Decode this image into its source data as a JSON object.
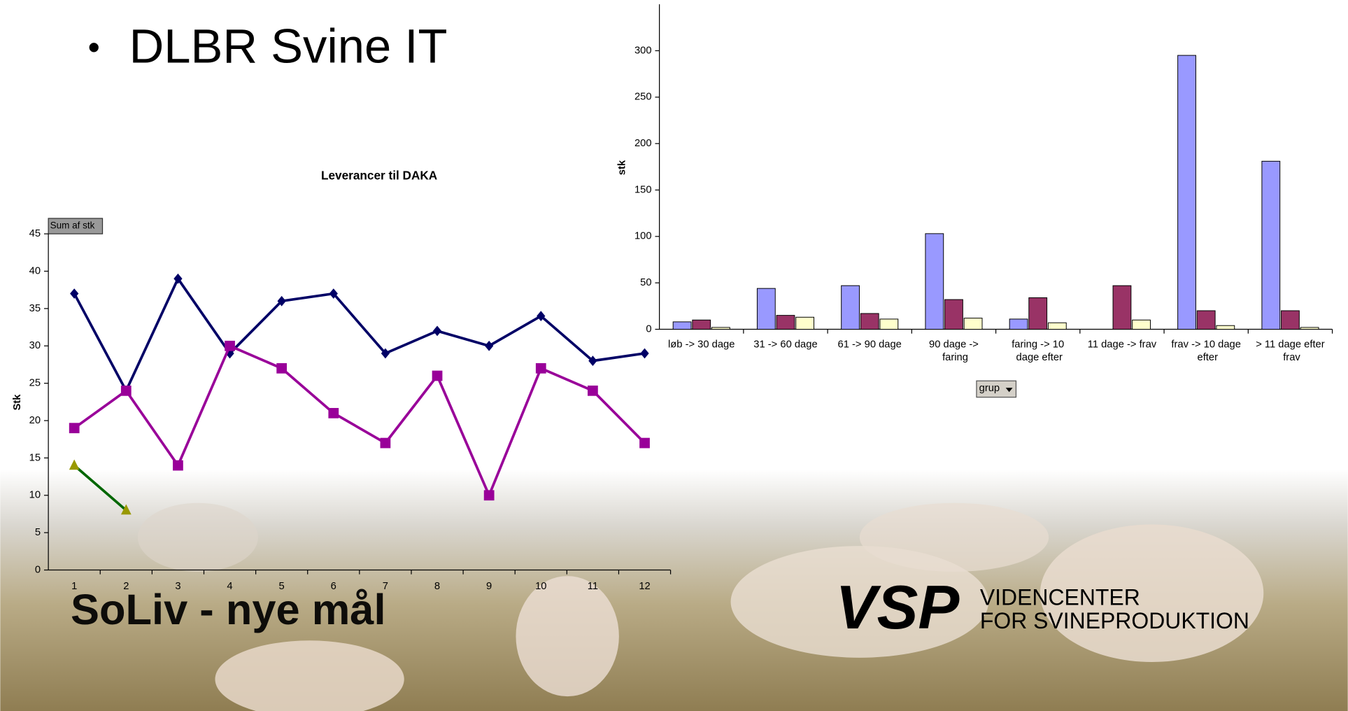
{
  "slide": {
    "bullet": "DLBR Svine IT",
    "photo_caption": "SoLiv - nye mål",
    "logo_text": "VSP",
    "logo_line1": "VIDENCENTER",
    "logo_line2": "FOR SVINEPRODUKTION"
  },
  "chart_data": [
    {
      "type": "bar",
      "y_label": "stk",
      "field_button": "grup",
      "categories": [
        "løb -> 30 dage",
        "31 -> 60 dage",
        "61 -> 90 dage",
        "90 dage -> faring",
        "faring -> 10 dage efter",
        "11 dage -> frav",
        "frav -> 10 dage efter",
        "> 11 dage efter frav"
      ],
      "series": [
        {
          "color": "#9999ff",
          "values": [
            8,
            44,
            47,
            103,
            11,
            0,
            295,
            181
          ]
        },
        {
          "color": "#993366",
          "values": [
            10,
            15,
            17,
            32,
            34,
            47,
            20,
            20
          ]
        },
        {
          "color": "#ffffcc",
          "values": [
            2,
            13,
            11,
            12,
            7,
            10,
            4,
            2
          ]
        }
      ],
      "ylim": [
        0,
        350
      ],
      "yticks": [
        0,
        50,
        100,
        150,
        200,
        250,
        300
      ]
    },
    {
      "type": "line",
      "title": "Leverancer til DAKA",
      "y_label": "Stk",
      "field_button": "Sum af stk",
      "categories": [
        "1",
        "2",
        "3",
        "4",
        "5",
        "6",
        "7",
        "8",
        "9",
        "10",
        "11",
        "12"
      ],
      "series": [
        {
          "color": "#000066",
          "marker": "diamond",
          "values": [
            37,
            24,
            39,
            29,
            36,
            37,
            29,
            32,
            30,
            34,
            28,
            29
          ]
        },
        {
          "color": "#990099",
          "marker": "square",
          "values": [
            19,
            24,
            14,
            30,
            27,
            21,
            17,
            26,
            10,
            27,
            24,
            17
          ]
        },
        {
          "color": "#006600",
          "marker_color": "#999900",
          "marker": "triangle",
          "values": [
            14,
            8,
            null,
            null,
            null,
            null,
            null,
            null,
            null,
            null,
            null,
            null
          ]
        }
      ],
      "ylim": [
        0,
        45
      ],
      "yticks": [
        0,
        5,
        10,
        15,
        20,
        25,
        30,
        35,
        40,
        45
      ]
    }
  ]
}
